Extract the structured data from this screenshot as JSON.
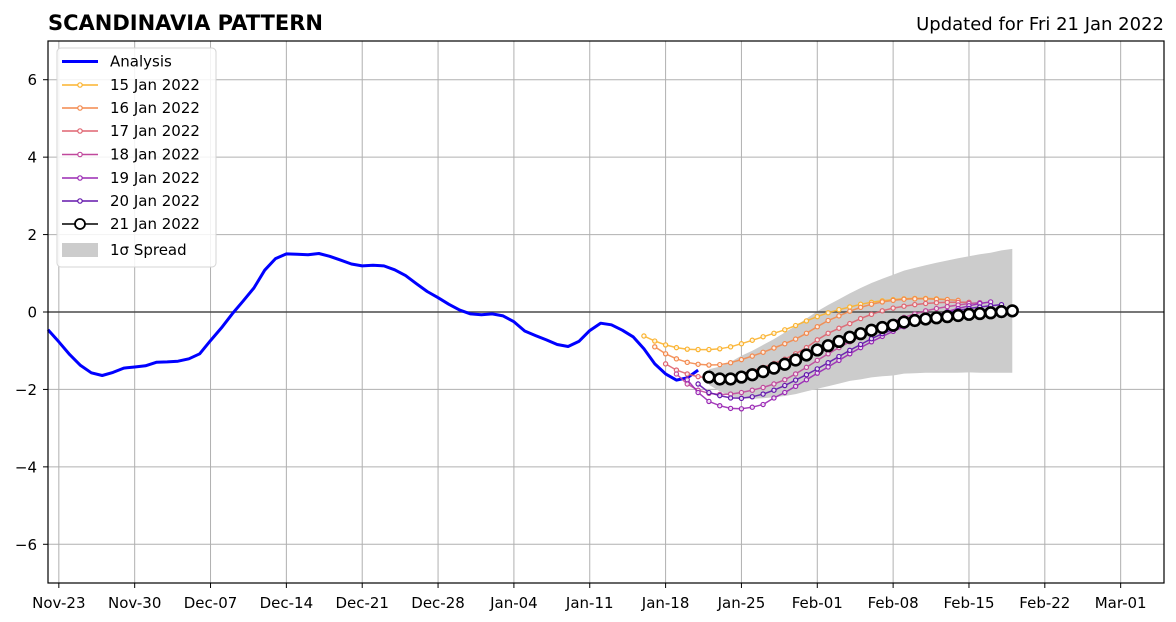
{
  "chart_data": {
    "type": "line",
    "title": "SCANDINAVIA PATTERN",
    "subtitle": "Updated for Fri 21 Jan 2022",
    "xlabel": "",
    "ylabel": "",
    "xlim": [
      "2021-11-22",
      "2022-03-05"
    ],
    "ylim": [
      -7,
      7
    ],
    "grid": true,
    "zero_line": 0,
    "legend_placement": "upper-left",
    "xticks": [
      {
        "date": "2021-11-23",
        "label": "Nov-23"
      },
      {
        "date": "2021-11-30",
        "label": "Nov-30"
      },
      {
        "date": "2021-12-07",
        "label": "Dec-07"
      },
      {
        "date": "2021-12-14",
        "label": "Dec-14"
      },
      {
        "date": "2021-12-21",
        "label": "Dec-21"
      },
      {
        "date": "2021-12-28",
        "label": "Dec-28"
      },
      {
        "date": "2022-01-04",
        "label": "Jan-04"
      },
      {
        "date": "2022-01-11",
        "label": "Jan-11"
      },
      {
        "date": "2022-01-18",
        "label": "Jan-18"
      },
      {
        "date": "2022-01-25",
        "label": "Jan-25"
      },
      {
        "date": "2022-02-01",
        "label": "Feb-01"
      },
      {
        "date": "2022-02-08",
        "label": "Feb-08"
      },
      {
        "date": "2022-02-15",
        "label": "Feb-15"
      },
      {
        "date": "2022-02-22",
        "label": "Feb-22"
      },
      {
        "date": "2022-03-01",
        "label": "Mar-01"
      }
    ],
    "yticks": [
      {
        "value": 6,
        "label": "6"
      },
      {
        "value": 4,
        "label": "4"
      },
      {
        "value": 2,
        "label": "2"
      },
      {
        "value": 0,
        "label": "0"
      },
      {
        "value": -2,
        "label": "−2"
      },
      {
        "value": -4,
        "label": "−4"
      },
      {
        "value": -6,
        "label": "−6"
      }
    ],
    "series": [
      {
        "name": "Analysis",
        "kind": "analysis",
        "color": "#0000ff",
        "start": "2021-11-22",
        "values": [
          -0.46,
          -0.77,
          -1.1,
          -1.38,
          -1.57,
          -1.64,
          -1.56,
          -1.45,
          -1.42,
          -1.39,
          -1.3,
          -1.29,
          -1.27,
          -1.21,
          -1.08,
          -0.74,
          -0.41,
          -0.05,
          0.28,
          0.62,
          1.08,
          1.38,
          1.5,
          1.49,
          1.48,
          1.51,
          1.44,
          1.34,
          1.24,
          1.19,
          1.21,
          1.19,
          1.09,
          0.94,
          0.73,
          0.53,
          0.37,
          0.2,
          0.05,
          -0.05,
          -0.07,
          -0.05,
          -0.1,
          -0.25,
          -0.49,
          -0.61,
          -0.72,
          -0.84,
          -0.89,
          -0.76,
          -0.48,
          -0.29,
          -0.33,
          -0.47,
          -0.64,
          -0.95,
          -1.34,
          -1.6,
          -1.76,
          -1.7,
          -1.5
        ]
      },
      {
        "name": "15 Jan 2022",
        "kind": "forecast",
        "color": "#fbb32f",
        "start": "2022-01-16",
        "values": [
          -0.62,
          -0.75,
          -0.85,
          -0.92,
          -0.96,
          -0.97,
          -0.97,
          -0.95,
          -0.9,
          -0.82,
          -0.73,
          -0.64,
          -0.55,
          -0.46,
          -0.35,
          -0.23,
          -0.12,
          -0.02,
          0.06,
          0.13,
          0.2,
          0.25,
          0.29,
          0.32,
          0.34,
          0.35,
          0.35,
          0.34,
          0.32
        ]
      },
      {
        "name": "16 Jan 2022",
        "kind": "forecast",
        "color": "#f3894d",
        "start": "2022-01-17",
        "values": [
          -0.9,
          -1.08,
          -1.21,
          -1.3,
          -1.35,
          -1.37,
          -1.36,
          -1.31,
          -1.23,
          -1.14,
          -1.04,
          -0.93,
          -0.82,
          -0.7,
          -0.55,
          -0.38,
          -0.22,
          -0.1,
          0.02,
          0.12,
          0.2,
          0.26,
          0.3,
          0.33,
          0.34,
          0.34,
          0.33,
          0.32,
          0.3
        ]
      },
      {
        "name": "17 Jan 2022",
        "kind": "forecast",
        "color": "#df6470",
        "start": "2022-01-18",
        "values": [
          -1.34,
          -1.5,
          -1.6,
          -1.67,
          -1.7,
          -1.7,
          -1.66,
          -1.6,
          -1.52,
          -1.43,
          -1.33,
          -1.22,
          -1.08,
          -0.92,
          -0.72,
          -0.55,
          -0.42,
          -0.3,
          -0.17,
          -0.06,
          0.03,
          0.1,
          0.15,
          0.19,
          0.22,
          0.24,
          0.25,
          0.25,
          0.25
        ]
      },
      {
        "name": "18 Jan 2022",
        "kind": "forecast",
        "color": "#c0489c",
        "start": "2022-01-19",
        "values": [
          -1.6,
          -1.86,
          -2.02,
          -2.1,
          -2.13,
          -2.12,
          -2.08,
          -2.02,
          -1.95,
          -1.86,
          -1.75,
          -1.6,
          -1.43,
          -1.25,
          -1.08,
          -0.92,
          -0.77,
          -0.63,
          -0.5,
          -0.37,
          -0.25,
          -0.14,
          -0.05,
          0.03,
          0.09,
          0.14,
          0.18,
          0.22,
          0.24
        ]
      },
      {
        "name": "19 Jan 2022",
        "kind": "forecast",
        "color": "#9a28b4",
        "start": "2022-01-20",
        "values": [
          -1.75,
          -2.08,
          -2.31,
          -2.42,
          -2.49,
          -2.5,
          -2.46,
          -2.39,
          -2.22,
          -2.08,
          -1.92,
          -1.75,
          -1.58,
          -1.42,
          -1.25,
          -1.08,
          -0.92,
          -0.77,
          -0.63,
          -0.5,
          -0.38,
          -0.27,
          -0.17,
          -0.08,
          0.01,
          0.09,
          0.16,
          0.22,
          0.26
        ]
      },
      {
        "name": "20 Jan 2022",
        "kind": "forecast",
        "color": "#6316ac",
        "start": "2022-01-21",
        "values": [
          -1.86,
          -2.08,
          -2.16,
          -2.22,
          -2.23,
          -2.19,
          -2.12,
          -2.02,
          -1.9,
          -1.76,
          -1.62,
          -1.47,
          -1.31,
          -1.15,
          -0.99,
          -0.84,
          -0.69,
          -0.56,
          -0.45,
          -0.34,
          -0.25,
          -0.16,
          -0.08,
          -0.02,
          0.04,
          0.09,
          0.13,
          0.16,
          0.19
        ]
      },
      {
        "name": "21 Jan 2022",
        "kind": "latest",
        "color": "#000000",
        "start": "2022-01-22",
        "values": [
          -1.68,
          -1.73,
          -1.73,
          -1.68,
          -1.62,
          -1.54,
          -1.45,
          -1.35,
          -1.24,
          -1.11,
          -0.98,
          -0.87,
          -0.76,
          -0.65,
          -0.56,
          -0.47,
          -0.4,
          -0.34,
          -0.26,
          -0.22,
          -0.18,
          -0.15,
          -0.12,
          -0.09,
          -0.06,
          -0.04,
          -0.02,
          0.01,
          0.03
        ]
      }
    ],
    "spread": {
      "name": "1σ Spread",
      "color": "#cccccc",
      "start": "2022-01-22",
      "upper": [
        -1.48,
        -1.41,
        -1.29,
        -1.13,
        -1.0,
        -0.85,
        -0.7,
        -0.53,
        -0.36,
        -0.17,
        0.02,
        0.18,
        0.33,
        0.48,
        0.62,
        0.75,
        0.86,
        0.96,
        1.07,
        1.14,
        1.21,
        1.27,
        1.33,
        1.39,
        1.44,
        1.49,
        1.53,
        1.59,
        1.63
      ],
      "lower": [
        -1.88,
        -2.05,
        -2.17,
        -2.23,
        -2.24,
        -2.23,
        -2.2,
        -2.17,
        -2.12,
        -2.05,
        -1.98,
        -1.92,
        -1.85,
        -1.78,
        -1.74,
        -1.69,
        -1.66,
        -1.64,
        -1.59,
        -1.58,
        -1.57,
        -1.57,
        -1.57,
        -1.57,
        -1.56,
        -1.57,
        -1.57,
        -1.57,
        -1.57
      ]
    }
  }
}
